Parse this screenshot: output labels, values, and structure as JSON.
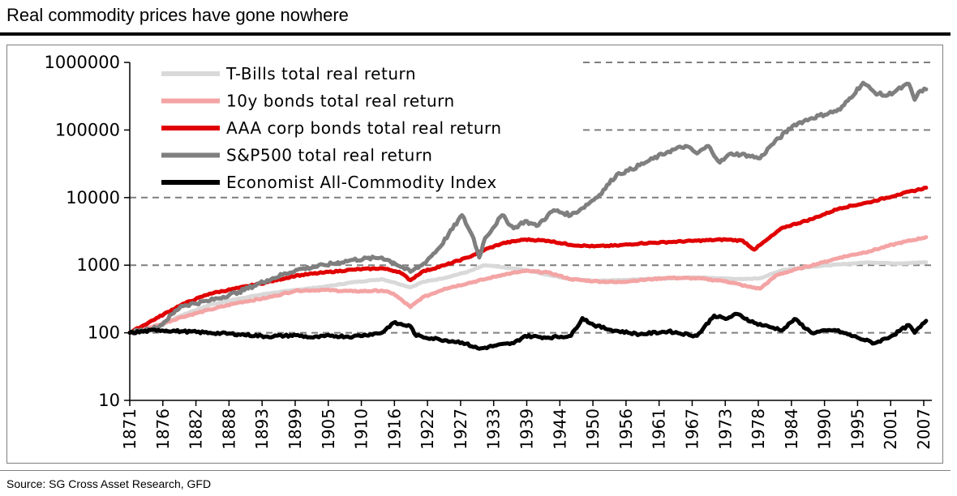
{
  "title": "Real commodity prices have gone nowhere",
  "source": "Source: SG Cross Asset Research, GFD",
  "chart_data": {
    "type": "line",
    "title": "Real commodity prices have gone nowhere",
    "xlabel": "",
    "ylabel": "",
    "yscale": "log",
    "ylim": [
      10,
      1000000
    ],
    "xlim": [
      1871,
      2011
    ],
    "grid": "dashed horizontal at 100, 1000, 10000, 100000, 1000000",
    "legend_position": "top-left",
    "y_ticks": [
      "10",
      "100",
      "1000",
      "10000",
      "100000",
      "1000000"
    ],
    "x_ticks": [
      "1871",
      "1876",
      "1882",
      "1888",
      "1893",
      "1899",
      "1905",
      "1910",
      "1916",
      "1922",
      "1927",
      "1933",
      "1939",
      "1944",
      "1950",
      "1956",
      "1961",
      "1967",
      "1973",
      "1978",
      "1984",
      "1990",
      "1995",
      "2001",
      "2007"
    ],
    "series": [
      {
        "name": "T-Bills total real return",
        "color": "#d9d9d9",
        "points": [
          [
            1871,
            100
          ],
          [
            1876,
            125
          ],
          [
            1880,
            180
          ],
          [
            1885,
            260
          ],
          [
            1890,
            320
          ],
          [
            1895,
            380
          ],
          [
            1900,
            430
          ],
          [
            1905,
            480
          ],
          [
            1910,
            560
          ],
          [
            1915,
            620
          ],
          [
            1917,
            560
          ],
          [
            1920,
            470
          ],
          [
            1922,
            560
          ],
          [
            1926,
            650
          ],
          [
            1930,
            800
          ],
          [
            1933,
            1000
          ],
          [
            1936,
            930
          ],
          [
            1940,
            850
          ],
          [
            1944,
            720
          ],
          [
            1948,
            620
          ],
          [
            1952,
            590
          ],
          [
            1956,
            600
          ],
          [
            1960,
            620
          ],
          [
            1965,
            640
          ],
          [
            1970,
            660
          ],
          [
            1974,
            640
          ],
          [
            1978,
            620
          ],
          [
            1981,
            640
          ],
          [
            1985,
            850
          ],
          [
            1990,
            950
          ],
          [
            1995,
            1030
          ],
          [
            2000,
            1100
          ],
          [
            2005,
            1060
          ],
          [
            2010,
            1100
          ]
        ]
      },
      {
        "name": "10y bonds total real return",
        "color": "#f4a4a4",
        "points": [
          [
            1871,
            100
          ],
          [
            1876,
            130
          ],
          [
            1880,
            170
          ],
          [
            1885,
            220
          ],
          [
            1890,
            280
          ],
          [
            1895,
            330
          ],
          [
            1900,
            420
          ],
          [
            1905,
            430
          ],
          [
            1910,
            410
          ],
          [
            1915,
            420
          ],
          [
            1917,
            380
          ],
          [
            1920,
            240
          ],
          [
            1922,
            330
          ],
          [
            1926,
            450
          ],
          [
            1930,
            540
          ],
          [
            1933,
            620
          ],
          [
            1936,
            720
          ],
          [
            1940,
            820
          ],
          [
            1944,
            780
          ],
          [
            1948,
            620
          ],
          [
            1952,
            580
          ],
          [
            1956,
            560
          ],
          [
            1960,
            600
          ],
          [
            1965,
            650
          ],
          [
            1970,
            640
          ],
          [
            1975,
            580
          ],
          [
            1979,
            480
          ],
          [
            1981,
            450
          ],
          [
            1984,
            720
          ],
          [
            1988,
            900
          ],
          [
            1992,
            1100
          ],
          [
            1995,
            1300
          ],
          [
            2000,
            1600
          ],
          [
            2005,
            2100
          ],
          [
            2010,
            2600
          ]
        ]
      },
      {
        "name": "AAA corp bonds total real return",
        "color": "#e00000",
        "points": [
          [
            1871,
            100
          ],
          [
            1876,
            170
          ],
          [
            1880,
            260
          ],
          [
            1885,
            380
          ],
          [
            1890,
            460
          ],
          [
            1895,
            560
          ],
          [
            1900,
            700
          ],
          [
            1905,
            780
          ],
          [
            1910,
            860
          ],
          [
            1915,
            900
          ],
          [
            1918,
            800
          ],
          [
            1920,
            600
          ],
          [
            1922,
            800
          ],
          [
            1926,
            1000
          ],
          [
            1930,
            1300
          ],
          [
            1933,
            1700
          ],
          [
            1936,
            2100
          ],
          [
            1940,
            2400
          ],
          [
            1944,
            2300
          ],
          [
            1948,
            2000
          ],
          [
            1952,
            1900
          ],
          [
            1956,
            1950
          ],
          [
            1960,
            2100
          ],
          [
            1965,
            2200
          ],
          [
            1970,
            2300
          ],
          [
            1975,
            2400
          ],
          [
            1978,
            2300
          ],
          [
            1980,
            1700
          ],
          [
            1982,
            2300
          ],
          [
            1985,
            3600
          ],
          [
            1990,
            4800
          ],
          [
            1995,
            7000
          ],
          [
            2000,
            8500
          ],
          [
            2005,
            11000
          ],
          [
            2010,
            14000
          ]
        ]
      },
      {
        "name": "S&P500 total real return",
        "color": "#7f7f7f",
        "points": [
          [
            1871,
            100
          ],
          [
            1876,
            120
          ],
          [
            1880,
            250
          ],
          [
            1885,
            300
          ],
          [
            1890,
            400
          ],
          [
            1895,
            600
          ],
          [
            1900,
            850
          ],
          [
            1905,
            1000
          ],
          [
            1910,
            1200
          ],
          [
            1915,
            1300
          ],
          [
            1917,
            1100
          ],
          [
            1920,
            800
          ],
          [
            1922,
            1000
          ],
          [
            1925,
            1800
          ],
          [
            1929,
            5500
          ],
          [
            1931,
            2500
          ],
          [
            1932,
            1300
          ],
          [
            1933,
            2500
          ],
          [
            1936,
            5500
          ],
          [
            1938,
            3500
          ],
          [
            1940,
            4500
          ],
          [
            1942,
            3800
          ],
          [
            1945,
            6500
          ],
          [
            1948,
            5500
          ],
          [
            1950,
            7000
          ],
          [
            1953,
            11000
          ],
          [
            1956,
            22000
          ],
          [
            1958,
            25000
          ],
          [
            1961,
            33000
          ],
          [
            1965,
            48000
          ],
          [
            1968,
            58000
          ],
          [
            1970,
            45000
          ],
          [
            1972,
            58000
          ],
          [
            1974,
            33000
          ],
          [
            1976,
            45000
          ],
          [
            1979,
            42000
          ],
          [
            1981,
            38000
          ],
          [
            1983,
            60000
          ],
          [
            1987,
            120000
          ],
          [
            1990,
            150000
          ],
          [
            1995,
            200000
          ],
          [
            1999,
            500000
          ],
          [
            2001,
            360000
          ],
          [
            2003,
            320000
          ],
          [
            2007,
            480000
          ],
          [
            2008,
            280000
          ],
          [
            2009,
            380000
          ],
          [
            2010,
            400000
          ]
        ]
      },
      {
        "name": "Economist All-Commodity Index",
        "color": "#000000",
        "points": [
          [
            1871,
            100
          ],
          [
            1876,
            110
          ],
          [
            1880,
            105
          ],
          [
            1885,
            100
          ],
          [
            1890,
            95
          ],
          [
            1895,
            88
          ],
          [
            1900,
            92
          ],
          [
            1903,
            85
          ],
          [
            1906,
            90
          ],
          [
            1910,
            88
          ],
          [
            1915,
            100
          ],
          [
            1917,
            140
          ],
          [
            1920,
            125
          ],
          [
            1921,
            90
          ],
          [
            1925,
            80
          ],
          [
            1929,
            72
          ],
          [
            1932,
            58
          ],
          [
            1935,
            65
          ],
          [
            1938,
            70
          ],
          [
            1940,
            90
          ],
          [
            1944,
            85
          ],
          [
            1948,
            90
          ],
          [
            1950,
            165
          ],
          [
            1952,
            130
          ],
          [
            1955,
            110
          ],
          [
            1960,
            95
          ],
          [
            1965,
            105
          ],
          [
            1970,
            90
          ],
          [
            1973,
            180
          ],
          [
            1975,
            160
          ],
          [
            1977,
            190
          ],
          [
            1980,
            140
          ],
          [
            1983,
            120
          ],
          [
            1985,
            110
          ],
          [
            1987,
            160
          ],
          [
            1990,
            100
          ],
          [
            1994,
            110
          ],
          [
            1998,
            85
          ],
          [
            2001,
            70
          ],
          [
            2004,
            90
          ],
          [
            2007,
            130
          ],
          [
            2008,
            100
          ],
          [
            2010,
            150
          ]
        ]
      }
    ]
  }
}
